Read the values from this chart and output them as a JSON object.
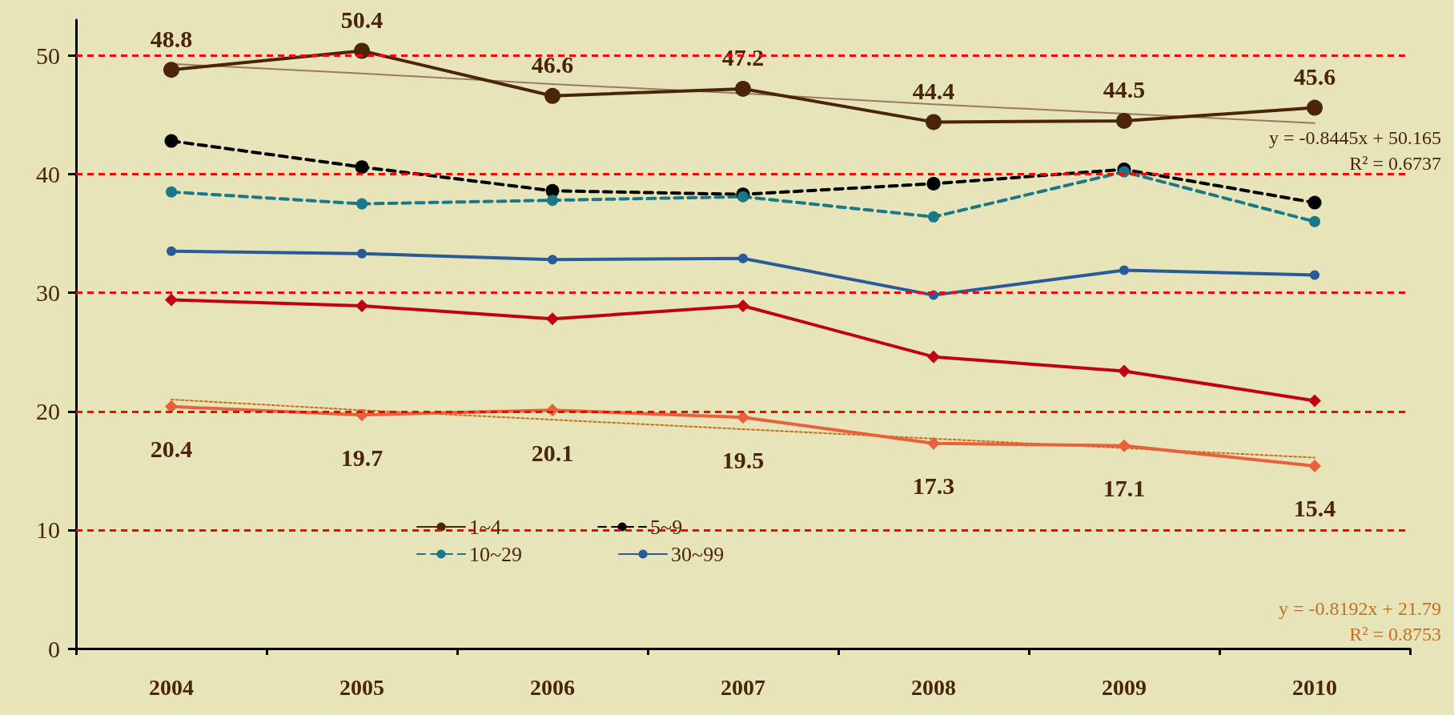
{
  "chart_data": {
    "type": "line",
    "categories": [
      "2004",
      "2005",
      "2006",
      "2007",
      "2008",
      "2009",
      "2010"
    ],
    "ylim": [
      0,
      53
    ],
    "yticks": [
      0,
      10,
      20,
      30,
      40,
      50
    ],
    "grid": "y",
    "legend": "bottom",
    "series": [
      {
        "name": "1~4",
        "color": "#4a2508",
        "marker": "circle",
        "line_style": "solid",
        "values": [
          48.8,
          50.4,
          46.6,
          47.2,
          44.4,
          44.5,
          45.6
        ],
        "value_labels": [
          "48.8",
          "50.4",
          "46.6",
          "47.2",
          "44.4",
          "44.5",
          "45.6"
        ]
      },
      {
        "name": "5~9",
        "color": "#000000",
        "marker": "circle",
        "line_style": "dashed",
        "values": [
          42.8,
          40.6,
          38.6,
          38.3,
          39.2,
          40.4,
          37.6
        ]
      },
      {
        "name": "10~29",
        "color": "#1a7888",
        "marker": "circle",
        "line_style": "dashed",
        "values": [
          38.5,
          37.5,
          37.8,
          38.1,
          36.4,
          40.2,
          36.0
        ]
      },
      {
        "name": "30~99",
        "color": "#2a5a98",
        "marker": "circle",
        "line_style": "solid",
        "values": [
          33.5,
          33.3,
          32.8,
          32.9,
          29.8,
          31.9,
          31.5
        ]
      },
      {
        "color": "#c00010",
        "marker": "diamond",
        "line_style": "solid",
        "values": [
          29.4,
          28.9,
          27.8,
          28.9,
          24.6,
          23.4,
          20.9
        ]
      },
      {
        "color": "#e8603c",
        "marker": "diamond",
        "line_style": "solid",
        "values": [
          20.4,
          19.7,
          20.1,
          19.5,
          17.3,
          17.1,
          15.4
        ],
        "value_labels": [
          "20.4",
          "19.7",
          "20.1",
          "19.5",
          "17.3",
          "17.1",
          "15.4"
        ]
      },
      {
        "color": "#9a7a60",
        "marker": "none",
        "line_style": "solid",
        "values": [
          49.3,
          48.5,
          47.6,
          46.8,
          45.9,
          45.1,
          44.3
        ]
      },
      {
        "color": "#c87020",
        "marker": "none",
        "line_style": "dotted",
        "values": [
          21.0,
          20.1,
          19.3,
          18.5,
          17.7,
          16.9,
          16.1
        ]
      }
    ],
    "annotations": [
      "y = -0.8445x + 50.165",
      "R² = 0.6737",
      "y = -0.8192x + 21.79",
      "R² = 0.8753"
    ]
  }
}
